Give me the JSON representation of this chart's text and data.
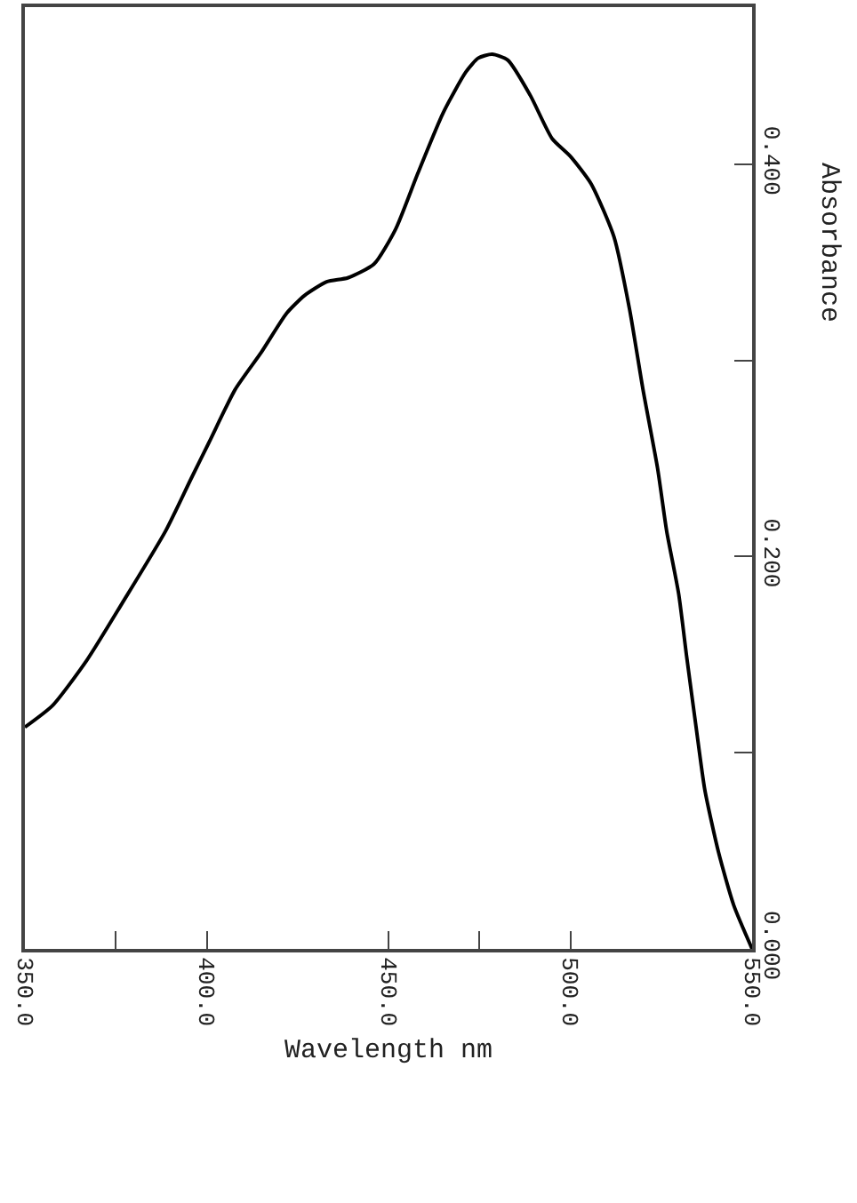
{
  "chart_data": {
    "type": "line",
    "xlabel": "Wavelength nm",
    "ylabel": "Absorbance",
    "x": [
      350,
      357.6,
      367,
      376.7,
      388.7,
      395.8,
      400.6,
      407.8,
      415,
      422,
      426.9,
      433,
      438.8,
      446,
      452,
      458,
      465,
      471.3,
      474.7,
      478.5,
      482.8,
      489,
      495,
      500,
      505.7,
      512,
      516.3,
      520,
      524,
      526.5,
      529.8,
      532,
      534.6,
      537,
      540.8,
      545,
      550
    ],
    "series": [
      {
        "color": "#000000",
        "values": [
          0.113,
          0.124,
          0.147,
          0.176,
          0.213,
          0.24,
          0.258,
          0.285,
          0.304,
          0.324,
          0.333,
          0.34,
          0.342,
          0.349,
          0.367,
          0.395,
          0.426,
          0.447,
          0.454,
          0.456,
          0.453,
          0.435,
          0.413,
          0.404,
          0.39,
          0.363,
          0.326,
          0.285,
          0.245,
          0.213,
          0.181,
          0.149,
          0.113,
          0.081,
          0.049,
          0.022,
          0.0
        ]
      }
    ],
    "xlim": [
      350,
      550
    ],
    "xticks": [
      {
        "value": 350,
        "label": "350.0"
      },
      {
        "value": 375,
        "label": null
      },
      {
        "value": 400,
        "label": "400.0"
      },
      {
        "value": 450,
        "label": "450.0"
      },
      {
        "value": 475,
        "label": null
      },
      {
        "value": 500,
        "label": "500.0"
      },
      {
        "value": 550,
        "label": "550.0"
      }
    ],
    "ylim": [
      0,
      0.48
    ],
    "yticks": [
      {
        "value": 0,
        "label": "0.000"
      },
      {
        "value": 0.1,
        "label": null
      },
      {
        "value": 0.2,
        "label": "0.200"
      },
      {
        "value": 0.3,
        "label": null
      },
      {
        "value": 0.4,
        "label": "0.400"
      }
    ],
    "marker": "none",
    "line_style": "solid"
  }
}
